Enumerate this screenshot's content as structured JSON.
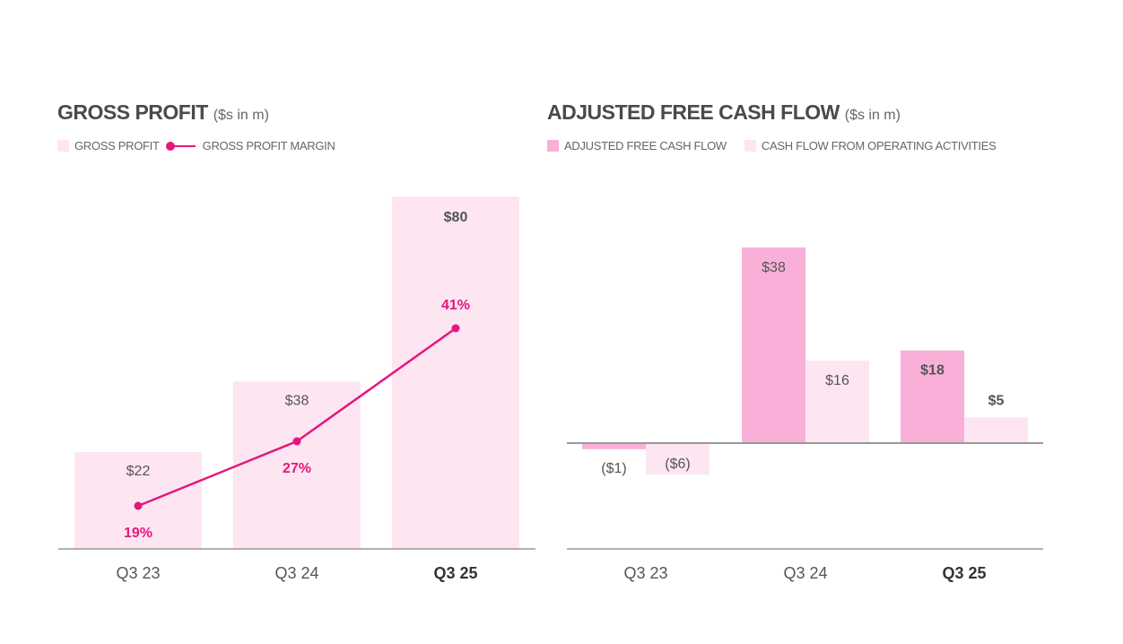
{
  "colors": {
    "light": "#fde6f1",
    "medium": "#f9b0d8",
    "line": "#e5177e",
    "text": "#555555",
    "axis": "#999999"
  },
  "chart_data": [
    {
      "type": "bar",
      "title": "GROSS PROFIT",
      "subtitle": "($s in m)",
      "categories": [
        "Q3 23",
        "Q3 24",
        "Q3 25"
      ],
      "series": [
        {
          "name": "GROSS PROFIT",
          "kind": "bar",
          "values": [
            22,
            38,
            80
          ],
          "labels": [
            "$22",
            "$38",
            "$80"
          ]
        },
        {
          "name": "GROSS PROFIT MARGIN",
          "kind": "line",
          "values": [
            19,
            27,
            41
          ],
          "labels": [
            "19%",
            "27%",
            "41%"
          ]
        }
      ],
      "bold_category": "Q3 25"
    },
    {
      "type": "bar",
      "title": "ADJUSTED FREE CASH FLOW",
      "subtitle": "($s in m)",
      "categories": [
        "Q3 23",
        "Q3 24",
        "Q3 25"
      ],
      "series": [
        {
          "name": "ADJUSTED FREE CASH FLOW",
          "values": [
            -1,
            38,
            18
          ],
          "labels": [
            "($1)",
            "$38",
            "$18"
          ]
        },
        {
          "name": "CASH FLOW FROM OPERATING ACTIVITIES",
          "values": [
            -6,
            16,
            5
          ],
          "labels": [
            "($6)",
            "$16",
            "$5"
          ]
        }
      ],
      "bold_category": "Q3 25"
    }
  ]
}
